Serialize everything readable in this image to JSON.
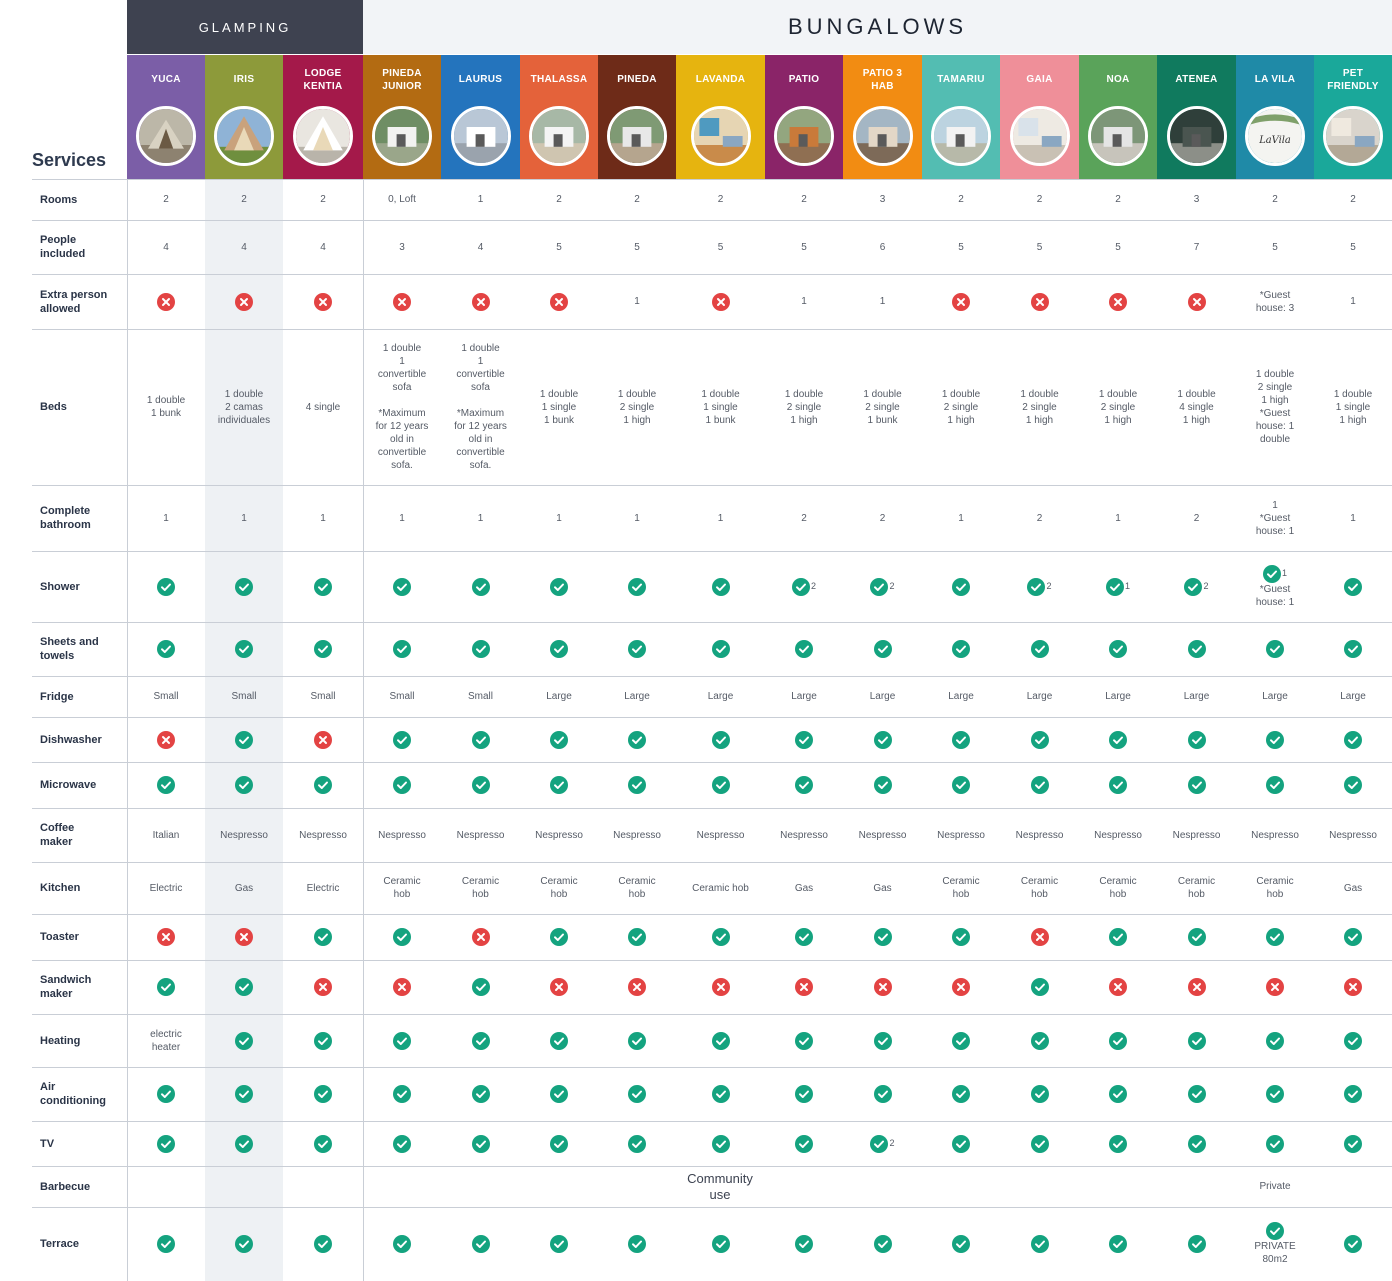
{
  "groups": {
    "glamping": "GLAMPING",
    "bungalows": "BUNGALOWS"
  },
  "services_title": "Services",
  "columns": [
    {
      "name": "YUCA",
      "color": "#7b5ea7",
      "photo": "tent-trees-photo"
    },
    {
      "name": "IRIS",
      "color": "#8d9a3a",
      "photo": "a-frame-cabin-photo"
    },
    {
      "name": "LODGE\nKENTIA",
      "color": "#a4194a",
      "photo": "a-frame-lodge-photo"
    },
    {
      "name": "PINEDA\nJUNIOR",
      "color": "#b36b12",
      "photo": "garden-bungalow-photo"
    },
    {
      "name": "LAURUS",
      "color": "#2474bd",
      "photo": "white-bungalow-photo"
    },
    {
      "name": "THALASSA",
      "color": "#e4623a",
      "photo": "terrace-bungalow-photo"
    },
    {
      "name": "PINEDA",
      "color": "#6e2b18",
      "photo": "pine-bungalow-photo"
    },
    {
      "name": "LAVANDA",
      "color": "#e6b40f",
      "photo": "interior-photo"
    },
    {
      "name": "PATIO",
      "color": "#8a2468",
      "photo": "patio-bungalow-photo"
    },
    {
      "name": "PATIO 3\nHAB",
      "color": "#f28c12",
      "photo": "patio-3-hab-photo"
    },
    {
      "name": "TAMARIU",
      "color": "#53bdb2",
      "photo": "tamariu-bungalow-photo"
    },
    {
      "name": "GAIA",
      "color": "#ef8f99",
      "photo": "gaia-interior-photo"
    },
    {
      "name": "NOA",
      "color": "#5aa35a",
      "photo": "noa-bungalow-photo"
    },
    {
      "name": "ATENEA",
      "color": "#107a5e",
      "photo": "atenea-bungalow-photo"
    },
    {
      "name": "LA VILA",
      "color": "#1f8aa7",
      "photo": "la-vila-logo-photo"
    },
    {
      "name": "PET\nFRIENDLY",
      "color": "#1aa89a",
      "photo": "pet-friendly-photo"
    }
  ],
  "colors": {
    "yes": "#14a37f",
    "no": "#e34343",
    "stripe": "#eef1f4"
  },
  "la_vila_logo": "LaVila",
  "rows": [
    {
      "label": "Rooms",
      "cells": [
        [
          "2"
        ],
        [
          "2"
        ],
        [
          "2"
        ],
        [
          "0, Loft"
        ],
        [
          "1"
        ],
        [
          "2"
        ],
        [
          "2"
        ],
        [
          "2"
        ],
        [
          "2"
        ],
        [
          "3"
        ],
        [
          "2"
        ],
        [
          "2"
        ],
        [
          "2"
        ],
        [
          "3"
        ],
        [
          "2"
        ],
        [
          "2"
        ]
      ]
    },
    {
      "label": "People\nincluded",
      "cells": [
        [
          "4"
        ],
        [
          "4"
        ],
        [
          "4"
        ],
        [
          "3"
        ],
        [
          "4"
        ],
        [
          "5"
        ],
        [
          "5"
        ],
        [
          "5"
        ],
        [
          "5"
        ],
        [
          "6"
        ],
        [
          "5"
        ],
        [
          "5"
        ],
        [
          "5"
        ],
        [
          "7"
        ],
        [
          "5"
        ],
        [
          "5"
        ]
      ]
    },
    {
      "label": "Extra person\nallowed",
      "cells": [
        [
          "no"
        ],
        [
          "no"
        ],
        [
          "no"
        ],
        [
          "no"
        ],
        [
          "no"
        ],
        [
          "no"
        ],
        [
          "1"
        ],
        [
          "no"
        ],
        [
          "1"
        ],
        [
          "1"
        ],
        [
          "no"
        ],
        [
          "no"
        ],
        [
          "no"
        ],
        [
          "no"
        ],
        [
          "*Guest\nhouse: 3"
        ],
        [
          "1"
        ]
      ]
    },
    {
      "label": "Beds",
      "cells": [
        [
          "1 double\n1 bunk"
        ],
        [
          "1 double\n2 camas\nindividuales"
        ],
        [
          "4 single"
        ],
        [
          "1 double\n1\nconvertible\nsofa\n\n*Maximum\nfor 12 years\nold in\nconvertible\nsofa."
        ],
        [
          "1 double\n1\nconvertible\nsofa\n\n*Maximum\nfor 12 years\nold in\nconvertible\nsofa."
        ],
        [
          "1 double\n1 single\n1 bunk"
        ],
        [
          "1 double\n2 single\n1 high"
        ],
        [
          "1 double\n1 single\n1 bunk"
        ],
        [
          "1 double\n2 single\n1 high"
        ],
        [
          "1 double\n2 single\n1 bunk"
        ],
        [
          "1 double\n2 single\n1 high"
        ],
        [
          "1 double\n2 single\n1 high"
        ],
        [
          "1 double\n2 single\n1 high"
        ],
        [
          "1 double\n4 single\n1 high"
        ],
        [
          "1 double\n2 single\n1 high\n*Guest\nhouse: 1\ndouble"
        ],
        [
          "1 double\n1 single\n1 high"
        ]
      ]
    },
    {
      "label": "Complete\nbathroom",
      "cells": [
        [
          "1"
        ],
        [
          "1"
        ],
        [
          "1"
        ],
        [
          "1"
        ],
        [
          "1"
        ],
        [
          "1"
        ],
        [
          "1"
        ],
        [
          "1"
        ],
        [
          "2"
        ],
        [
          "2"
        ],
        [
          "1"
        ],
        [
          "2"
        ],
        [
          "1"
        ],
        [
          "2"
        ],
        [
          "1\n*Guest\nhouse: 1"
        ],
        [
          "1"
        ]
      ]
    },
    {
      "label": "Shower",
      "cells": [
        [
          "yes"
        ],
        [
          "yes"
        ],
        [
          "yes"
        ],
        [
          "yes"
        ],
        [
          "yes"
        ],
        [
          "yes"
        ],
        [
          "yes"
        ],
        [
          "yes"
        ],
        [
          "yes",
          "2"
        ],
        [
          "yes",
          "2"
        ],
        [
          "yes"
        ],
        [
          "yes",
          "2"
        ],
        [
          "yes",
          "1"
        ],
        [
          "yes",
          "2"
        ],
        [
          "yes",
          "1",
          "*Guest\nhouse: 1"
        ],
        [
          "yes"
        ]
      ]
    },
    {
      "label": "Sheets and\ntowels",
      "cells": [
        [
          "yes"
        ],
        [
          "yes"
        ],
        [
          "yes"
        ],
        [
          "yes"
        ],
        [
          "yes"
        ],
        [
          "yes"
        ],
        [
          "yes"
        ],
        [
          "yes"
        ],
        [
          "yes"
        ],
        [
          "yes"
        ],
        [
          "yes"
        ],
        [
          "yes"
        ],
        [
          "yes"
        ],
        [
          "yes"
        ],
        [
          "yes"
        ],
        [
          "yes"
        ]
      ]
    },
    {
      "label": "Fridge",
      "cells": [
        [
          "Small"
        ],
        [
          "Small"
        ],
        [
          "Small"
        ],
        [
          "Small"
        ],
        [
          "Small"
        ],
        [
          "Large"
        ],
        [
          "Large"
        ],
        [
          "Large"
        ],
        [
          "Large"
        ],
        [
          "Large"
        ],
        [
          "Large"
        ],
        [
          "Large"
        ],
        [
          "Large"
        ],
        [
          "Large"
        ],
        [
          "Large"
        ],
        [
          "Large"
        ]
      ]
    },
    {
      "label": "Dishwasher",
      "cells": [
        [
          "no"
        ],
        [
          "yes"
        ],
        [
          "no"
        ],
        [
          "yes"
        ],
        [
          "yes"
        ],
        [
          "yes"
        ],
        [
          "yes"
        ],
        [
          "yes"
        ],
        [
          "yes"
        ],
        [
          "yes"
        ],
        [
          "yes"
        ],
        [
          "yes"
        ],
        [
          "yes"
        ],
        [
          "yes"
        ],
        [
          "yes"
        ],
        [
          "yes"
        ]
      ]
    },
    {
      "label": "Microwave",
      "cells": [
        [
          "yes"
        ],
        [
          "yes"
        ],
        [
          "yes"
        ],
        [
          "yes"
        ],
        [
          "yes"
        ],
        [
          "yes"
        ],
        [
          "yes"
        ],
        [
          "yes"
        ],
        [
          "yes"
        ],
        [
          "yes"
        ],
        [
          "yes"
        ],
        [
          "yes"
        ],
        [
          "yes"
        ],
        [
          "yes"
        ],
        [
          "yes"
        ],
        [
          "yes"
        ]
      ]
    },
    {
      "label": "Coffee\nmaker",
      "cells": [
        [
          "Italian"
        ],
        [
          "Nespresso"
        ],
        [
          "Nespresso"
        ],
        [
          "Nespresso"
        ],
        [
          "Nespresso"
        ],
        [
          "Nespresso"
        ],
        [
          "Nespresso"
        ],
        [
          "Nespresso"
        ],
        [
          "Nespresso"
        ],
        [
          "Nespresso"
        ],
        [
          "Nespresso"
        ],
        [
          "Nespresso"
        ],
        [
          "Nespresso"
        ],
        [
          "Nespresso"
        ],
        [
          "Nespresso"
        ],
        [
          "Nespresso"
        ]
      ]
    },
    {
      "label": "Kitchen",
      "cells": [
        [
          "Electric"
        ],
        [
          "Gas"
        ],
        [
          "Electric"
        ],
        [
          "Ceramic\nhob"
        ],
        [
          "Ceramic\nhob"
        ],
        [
          "Ceramic\nhob"
        ],
        [
          "Ceramic\nhob"
        ],
        [
          "Ceramic hob"
        ],
        [
          "Gas"
        ],
        [
          "Gas"
        ],
        [
          "Ceramic\nhob"
        ],
        [
          "Ceramic\nhob"
        ],
        [
          "Ceramic\nhob"
        ],
        [
          "Ceramic\nhob"
        ],
        [
          "Ceramic\nhob"
        ],
        [
          "Gas"
        ]
      ]
    },
    {
      "label": "Toaster",
      "cells": [
        [
          "no"
        ],
        [
          "no"
        ],
        [
          "yes"
        ],
        [
          "yes"
        ],
        [
          "no"
        ],
        [
          "yes"
        ],
        [
          "yes"
        ],
        [
          "yes"
        ],
        [
          "yes"
        ],
        [
          "yes"
        ],
        [
          "yes"
        ],
        [
          "no"
        ],
        [
          "yes"
        ],
        [
          "yes"
        ],
        [
          "yes"
        ],
        [
          "yes"
        ]
      ]
    },
    {
      "label": "Sandwich\nmaker",
      "cells": [
        [
          "yes"
        ],
        [
          "yes"
        ],
        [
          "no"
        ],
        [
          "no"
        ],
        [
          "yes"
        ],
        [
          "no"
        ],
        [
          "no"
        ],
        [
          "no"
        ],
        [
          "no"
        ],
        [
          "no"
        ],
        [
          "no"
        ],
        [
          "yes"
        ],
        [
          "no"
        ],
        [
          "no"
        ],
        [
          "no"
        ],
        [
          "no"
        ]
      ]
    },
    {
      "label": "Heating",
      "cells": [
        [
          "electric\nheater"
        ],
        [
          "yes"
        ],
        [
          "yes"
        ],
        [
          "yes"
        ],
        [
          "yes"
        ],
        [
          "yes"
        ],
        [
          "yes"
        ],
        [
          "yes"
        ],
        [
          "yes"
        ],
        [
          "yes"
        ],
        [
          "yes"
        ],
        [
          "yes"
        ],
        [
          "yes"
        ],
        [
          "yes"
        ],
        [
          "yes"
        ],
        [
          "yes"
        ]
      ]
    },
    {
      "label": "Air\nconditioning",
      "cells": [
        [
          "yes"
        ],
        [
          "yes"
        ],
        [
          "yes"
        ],
        [
          "yes"
        ],
        [
          "yes"
        ],
        [
          "yes"
        ],
        [
          "yes"
        ],
        [
          "yes"
        ],
        [
          "yes"
        ],
        [
          "yes"
        ],
        [
          "yes"
        ],
        [
          "yes"
        ],
        [
          "yes"
        ],
        [
          "yes"
        ],
        [
          "yes"
        ],
        [
          "yes"
        ]
      ]
    },
    {
      "label": "TV",
      "cells": [
        [
          "yes"
        ],
        [
          "yes"
        ],
        [
          "yes"
        ],
        [
          "yes"
        ],
        [
          "yes"
        ],
        [
          "yes"
        ],
        [
          "yes"
        ],
        [
          "yes"
        ],
        [
          "yes"
        ],
        [
          "yes",
          "2"
        ],
        [
          "yes"
        ],
        [
          "yes"
        ],
        [
          "yes"
        ],
        [
          "yes"
        ],
        [
          "yes"
        ],
        [
          "yes"
        ]
      ]
    },
    {
      "label": "Barbecue",
      "community": "Community\nuse",
      "la_vila": "Private"
    },
    {
      "label": "Terrace",
      "cells": [
        [
          "yes"
        ],
        [
          "yes"
        ],
        [
          "yes"
        ],
        [
          "yes"
        ],
        [
          "yes"
        ],
        [
          "yes"
        ],
        [
          "yes"
        ],
        [
          "yes"
        ],
        [
          "yes"
        ],
        [
          "yes"
        ],
        [
          "yes"
        ],
        [
          "yes"
        ],
        [
          "yes"
        ],
        [
          "yes"
        ],
        [
          "yes",
          "",
          "PRIVATE\n80m2"
        ],
        [
          "yes"
        ]
      ]
    }
  ]
}
